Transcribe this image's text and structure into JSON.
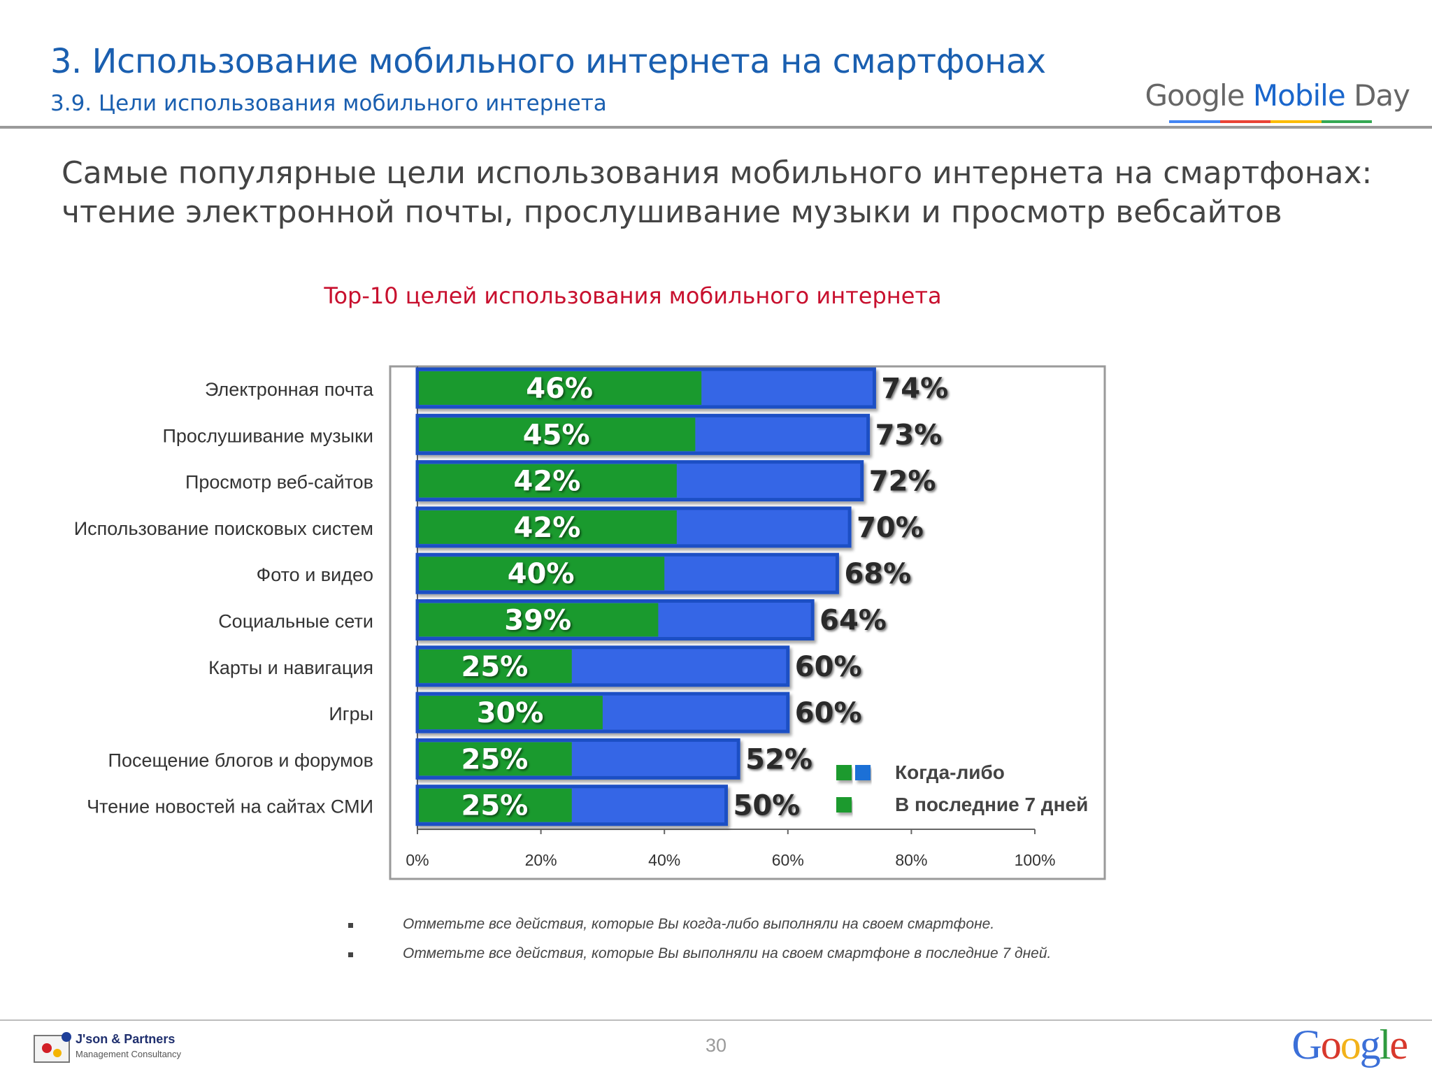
{
  "header": {
    "section_title": "3. Использование мобильного интернета на смартфонах",
    "section_subtitle": "3.9. Цели использования мобильного интернета",
    "logo": {
      "google": "Google",
      "mobile": "Mobile",
      "day": "Day"
    }
  },
  "headline": [
    "Самые популярные цели использования мобильного интернета на смартфонах:",
    "чтение электронной почты, прослушивание музыки и просмотр вебсайтов"
  ],
  "chart_data": {
    "type": "bar",
    "orientation": "horizontal",
    "title": "Top-10 целей использования мобильного интернета",
    "categories": [
      "Электронная почта",
      "Прослушивание музыки",
      "Просмотр веб-сайтов",
      "Использование поисковых систем",
      "Фото и видео",
      "Социальные сети",
      "Карты и навигация",
      "Игры",
      "Посещение блогов и форумов",
      "Чтение новостей на сайтах СМИ"
    ],
    "series": [
      {
        "name": "Когда-либо",
        "values": [
          74,
          73,
          72,
          70,
          68,
          64,
          60,
          60,
          52,
          50
        ],
        "labels": [
          "74%",
          "73%",
          "72%",
          "70%",
          "68%",
          "64%",
          "60%",
          "60%",
          "52%",
          "50%"
        ]
      },
      {
        "name": "В последние 7 дней",
        "values": [
          46,
          45,
          42,
          42,
          40,
          39,
          25,
          30,
          25,
          25
        ],
        "labels": [
          "46%",
          "45%",
          "42%",
          "42%",
          "40%",
          "39%",
          "25%",
          "30%",
          "25%",
          "25%"
        ]
      }
    ],
    "xlim": [
      0,
      100
    ],
    "xticks": [
      "0%",
      "20%",
      "40%",
      "60%",
      "80%",
      "100%"
    ],
    "legend_position": "lower-right",
    "colors": {
      "ever": "#3566e6",
      "ever_border": "#1f4fc4",
      "recent": "#1a9a2e"
    }
  },
  "footnotes": [
    "Отметьте все действия, которые Вы когда-либо выполняли на своем смартфоне.",
    "Отметьте все действия, которые Вы выполняли на своем смартфоне в последние 7 дней."
  ],
  "footer": {
    "partner_name": "J'son & Partners",
    "partner_sub": "Management Consultancy",
    "page_number": "30",
    "google_logo": "Google"
  }
}
